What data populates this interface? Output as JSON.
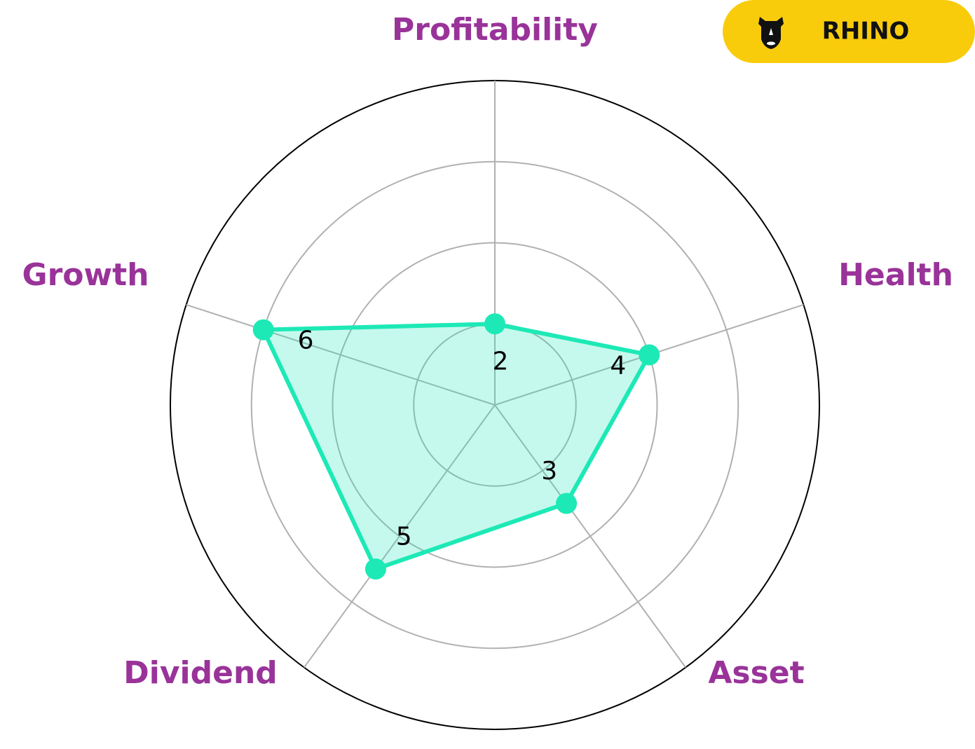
{
  "chart_data": {
    "type": "radar",
    "categories": [
      "Profitability",
      "Health",
      "Asset",
      "Dividend",
      "Growth"
    ],
    "values": [
      2,
      4,
      3,
      5,
      6
    ],
    "color": "#1de9b6",
    "rlim": [
      0,
      8
    ],
    "rticks": [
      2,
      4,
      6,
      8
    ],
    "grid": true
  },
  "brand": "RHINO"
}
